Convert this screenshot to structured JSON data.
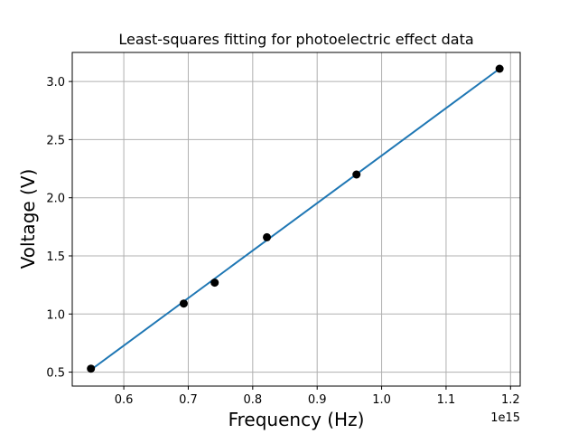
{
  "chart_data": {
    "type": "scatter",
    "title": "Least-squares fitting for photoelectric effect data",
    "xlabel": "Frequency (Hz)",
    "ylabel": "Voltage (V)",
    "x_offset_label": "1e15",
    "x_scale": 1000000000000000.0,
    "xlim": [
      520000000000000.0,
      1215000000000000.0
    ],
    "ylim": [
      0.38,
      3.25
    ],
    "x_ticks": [
      600000000000000.0,
      700000000000000.0,
      800000000000000.0,
      900000000000000.0,
      1000000000000000.0,
      1100000000000000.0,
      1200000000000000.0
    ],
    "x_tick_labels": [
      "0.6",
      "0.7",
      "0.8",
      "0.9",
      "1.0",
      "1.1",
      "1.2"
    ],
    "y_ticks": [
      0.5,
      1.0,
      1.5,
      2.0,
      2.5,
      3.0
    ],
    "y_tick_labels": [
      "0.5",
      "1.0",
      "1.5",
      "2.0",
      "2.5",
      "3.0"
    ],
    "grid": true,
    "series": [
      {
        "kind": "scatter",
        "color": "#000000",
        "x": [
          549000000000000.0,
          693000000000000.0,
          741000000000000.0,
          822000000000000.0,
          961000000000000.0,
          1183000000000000.0
        ],
        "y": [
          0.53,
          1.09,
          1.27,
          1.66,
          2.2,
          3.11
        ]
      },
      {
        "kind": "line",
        "color": "#1f77b4",
        "x": [
          549000000000000.0,
          1183000000000000.0
        ],
        "y": [
          0.52,
          3.11
        ]
      }
    ]
  }
}
